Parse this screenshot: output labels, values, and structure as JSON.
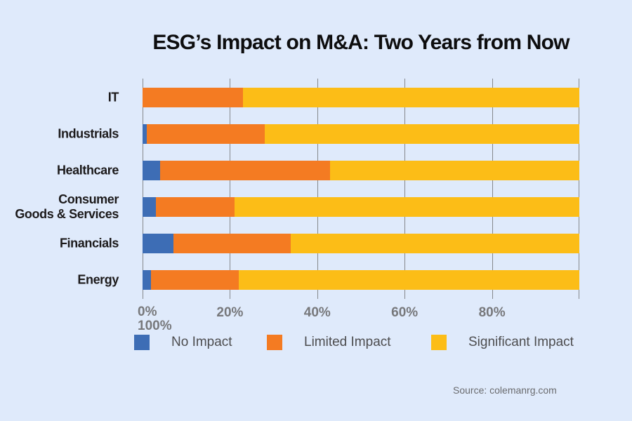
{
  "title": "ESG’s Impact on M&A: Two Years from Now",
  "source": "Source: colemanrg.com",
  "colors": {
    "background": "#dfeafb",
    "no_impact": "#3d6db5",
    "limited_impact": "#f47b22",
    "significant_impact": "#fcbd17",
    "gridline": "#85888c",
    "axis_text": "#77787b",
    "category_text": "#1c1a1b",
    "legend_text": "#4d4d4f",
    "source_text": "#6a6b6e"
  },
  "chart_data": {
    "type": "bar",
    "orientation": "horizontal",
    "stacked": true,
    "title": "ESG’s Impact on M&A: Two Years from Now",
    "categories": [
      "IT",
      "Industrials",
      "Healthcare",
      "Consumer\nGoods & Services",
      "Financials",
      "Energy"
    ],
    "series": [
      {
        "name": "No Impact",
        "color": "#3d6db5",
        "values": [
          0,
          1,
          4,
          3,
          7,
          2
        ]
      },
      {
        "name": "Limited Impact",
        "color": "#f47b22",
        "values": [
          23,
          27,
          39,
          18,
          27,
          20
        ]
      },
      {
        "name": "Significant Impact",
        "color": "#fcbd17",
        "values": [
          77,
          72,
          57,
          79,
          66,
          78
        ]
      }
    ],
    "x_ticks": [
      "0%",
      "20%",
      "40%",
      "60%",
      "80%",
      "100%"
    ],
    "x_tick_100_wraps_under_0": true,
    "xlim": [
      0,
      100
    ],
    "grid": true,
    "legend_position": "bottom"
  },
  "legend": {
    "items": [
      {
        "label": "No Impact",
        "color": "#3d6db5"
      },
      {
        "label": "Limited Impact",
        "color": "#f47b22"
      },
      {
        "label": "Significant Impact",
        "color": "#fcbd17"
      }
    ]
  }
}
